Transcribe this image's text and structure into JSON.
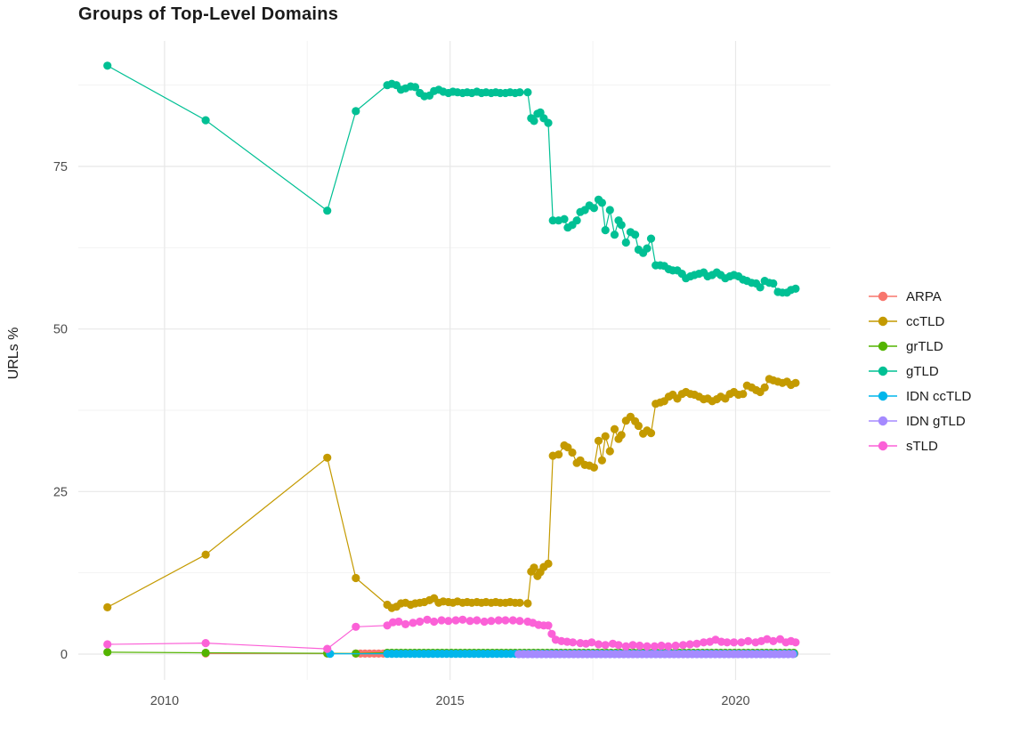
{
  "title": "Groups of Top-Level Domains",
  "style": {
    "background": "#ffffff",
    "grid_major_color": "#e8e8e8",
    "grid_minor_color": "#f3f3f3",
    "tick_label_color": "#4d4d4d",
    "text_color": "#1a1a1a"
  },
  "chart_data": {
    "type": "line",
    "title": "Groups of Top-Level Domains",
    "xlabel": "",
    "ylabel": "URLs %",
    "xlim": [
      2008.49,
      2021.66
    ],
    "ylim": [
      -3.97,
      94.3
    ],
    "x_ticks": [
      2010,
      2015,
      2020
    ],
    "x_minor_ticks": [
      2012.5,
      2017.5
    ],
    "y_ticks": [
      0,
      25,
      50,
      75
    ],
    "y_minor_ticks": [
      12.5,
      37.5,
      62.5,
      87.5
    ],
    "grid": true,
    "legend_position": "right",
    "point_radius": 4.6,
    "series": [
      {
        "name": "ARPA",
        "color": "#F8766D",
        "points": [
          [
            2010.72,
            0.1
          ],
          [
            2012.85,
            0.1
          ]
        ],
        "flat": {
          "from": 2013.35,
          "to": 2021.05,
          "step": 0.08,
          "value": 0.08
        }
      },
      {
        "name": "ccTLD",
        "color": "#C49A00",
        "points": [
          [
            2009.0,
            7.2
          ],
          [
            2010.72,
            15.3
          ],
          [
            2012.85,
            30.2
          ],
          [
            2013.35,
            11.7
          ],
          [
            2013.9,
            7.6
          ],
          [
            2013.98,
            7.1
          ],
          [
            2014.06,
            7.3
          ],
          [
            2014.14,
            7.8
          ],
          [
            2014.22,
            7.9
          ],
          [
            2014.31,
            7.6
          ],
          [
            2014.39,
            7.8
          ],
          [
            2014.47,
            7.9
          ],
          [
            2014.55,
            8.0
          ],
          [
            2014.64,
            8.3
          ],
          [
            2014.72,
            8.6
          ],
          [
            2014.8,
            7.9
          ],
          [
            2014.88,
            8.1
          ],
          [
            2014.97,
            8.0
          ],
          [
            2015.05,
            7.9
          ],
          [
            2015.13,
            8.1
          ],
          [
            2015.22,
            7.9
          ],
          [
            2015.3,
            8.0
          ],
          [
            2015.38,
            7.9
          ],
          [
            2015.47,
            8.0
          ],
          [
            2015.55,
            7.9
          ],
          [
            2015.63,
            8.0
          ],
          [
            2015.72,
            7.9
          ],
          [
            2015.8,
            8.0
          ],
          [
            2015.88,
            7.9
          ],
          [
            2015.97,
            7.9
          ],
          [
            2016.05,
            8.0
          ],
          [
            2016.14,
            7.9
          ],
          [
            2016.22,
            7.9
          ],
          [
            2016.36,
            7.8
          ],
          [
            2016.42,
            12.7
          ],
          [
            2016.47,
            13.3
          ],
          [
            2016.53,
            12.0
          ],
          [
            2016.58,
            12.6
          ],
          [
            2016.64,
            13.4
          ],
          [
            2016.72,
            13.9
          ],
          [
            2016.8,
            30.5
          ],
          [
            2016.9,
            30.7
          ],
          [
            2017.0,
            32.1
          ],
          [
            2017.06,
            31.8
          ],
          [
            2017.14,
            31.0
          ],
          [
            2017.22,
            29.4
          ],
          [
            2017.28,
            29.8
          ],
          [
            2017.36,
            29.1
          ],
          [
            2017.44,
            29.0
          ],
          [
            2017.52,
            28.7
          ],
          [
            2017.6,
            32.8
          ],
          [
            2017.66,
            29.8
          ],
          [
            2017.72,
            33.5
          ],
          [
            2017.8,
            31.2
          ],
          [
            2017.88,
            34.6
          ],
          [
            2017.95,
            33.1
          ],
          [
            2018.0,
            33.7
          ],
          [
            2018.08,
            35.9
          ],
          [
            2018.16,
            36.5
          ],
          [
            2018.24,
            35.8
          ],
          [
            2018.3,
            35.1
          ],
          [
            2018.38,
            33.9
          ],
          [
            2018.45,
            34.4
          ],
          [
            2018.52,
            34.0
          ],
          [
            2018.6,
            38.5
          ],
          [
            2018.68,
            38.7
          ],
          [
            2018.75,
            38.9
          ],
          [
            2018.83,
            39.6
          ],
          [
            2018.9,
            39.9
          ],
          [
            2018.98,
            39.3
          ],
          [
            2019.06,
            40.0
          ],
          [
            2019.13,
            40.3
          ],
          [
            2019.21,
            40.0
          ],
          [
            2019.28,
            39.9
          ],
          [
            2019.36,
            39.6
          ],
          [
            2019.44,
            39.2
          ],
          [
            2019.51,
            39.3
          ],
          [
            2019.59,
            38.9
          ],
          [
            2019.67,
            39.2
          ],
          [
            2019.74,
            39.6
          ],
          [
            2019.82,
            39.3
          ],
          [
            2019.9,
            40.0
          ],
          [
            2019.97,
            40.3
          ],
          [
            2020.05,
            39.9
          ],
          [
            2020.13,
            40.0
          ],
          [
            2020.2,
            41.3
          ],
          [
            2020.28,
            41.0
          ],
          [
            2020.36,
            40.6
          ],
          [
            2020.43,
            40.3
          ],
          [
            2020.51,
            41.0
          ],
          [
            2020.59,
            42.3
          ],
          [
            2020.66,
            42.1
          ],
          [
            2020.74,
            41.9
          ],
          [
            2020.82,
            41.7
          ],
          [
            2020.9,
            41.9
          ],
          [
            2020.97,
            41.4
          ],
          [
            2021.05,
            41.7
          ]
        ]
      },
      {
        "name": "grTLD",
        "color": "#53B400",
        "points": [
          [
            2009.0,
            0.3
          ],
          [
            2010.72,
            0.2
          ],
          [
            2012.85,
            0.12
          ],
          [
            2013.35,
            0.1
          ]
        ],
        "flat": {
          "from": 2013.9,
          "to": 2021.05,
          "step": 0.08,
          "value": 0.2
        }
      },
      {
        "name": "gTLD",
        "color": "#00C094",
        "points": [
          [
            2009.0,
            90.5
          ],
          [
            2010.72,
            82.1
          ],
          [
            2012.85,
            68.2
          ],
          [
            2013.35,
            83.5
          ],
          [
            2013.9,
            87.5
          ],
          [
            2013.98,
            87.7
          ],
          [
            2014.06,
            87.5
          ],
          [
            2014.14,
            86.8
          ],
          [
            2014.22,
            87.0
          ],
          [
            2014.31,
            87.3
          ],
          [
            2014.39,
            87.2
          ],
          [
            2014.47,
            86.3
          ],
          [
            2014.55,
            85.8
          ],
          [
            2014.64,
            85.9
          ],
          [
            2014.72,
            86.6
          ],
          [
            2014.8,
            86.8
          ],
          [
            2014.88,
            86.5
          ],
          [
            2014.97,
            86.3
          ],
          [
            2015.05,
            86.5
          ],
          [
            2015.13,
            86.4
          ],
          [
            2015.22,
            86.3
          ],
          [
            2015.3,
            86.4
          ],
          [
            2015.38,
            86.3
          ],
          [
            2015.47,
            86.5
          ],
          [
            2015.55,
            86.3
          ],
          [
            2015.63,
            86.4
          ],
          [
            2015.72,
            86.3
          ],
          [
            2015.8,
            86.4
          ],
          [
            2015.88,
            86.3
          ],
          [
            2015.97,
            86.3
          ],
          [
            2016.05,
            86.4
          ],
          [
            2016.14,
            86.3
          ],
          [
            2016.22,
            86.4
          ],
          [
            2016.36,
            86.4
          ],
          [
            2016.42,
            82.4
          ],
          [
            2016.47,
            82.0
          ],
          [
            2016.53,
            83.1
          ],
          [
            2016.58,
            83.3
          ],
          [
            2016.64,
            82.4
          ],
          [
            2016.72,
            81.7
          ],
          [
            2016.8,
            66.7
          ],
          [
            2016.9,
            66.7
          ],
          [
            2017.0,
            66.9
          ],
          [
            2017.06,
            65.6
          ],
          [
            2017.14,
            66.0
          ],
          [
            2017.22,
            66.7
          ],
          [
            2017.28,
            68.0
          ],
          [
            2017.36,
            68.3
          ],
          [
            2017.44,
            69.0
          ],
          [
            2017.52,
            68.6
          ],
          [
            2017.6,
            69.9
          ],
          [
            2017.66,
            69.4
          ],
          [
            2017.72,
            65.2
          ],
          [
            2017.8,
            68.3
          ],
          [
            2017.88,
            64.5
          ],
          [
            2017.95,
            66.7
          ],
          [
            2018.0,
            66.0
          ],
          [
            2018.08,
            63.3
          ],
          [
            2018.16,
            64.9
          ],
          [
            2018.24,
            64.5
          ],
          [
            2018.3,
            62.2
          ],
          [
            2018.38,
            61.7
          ],
          [
            2018.45,
            62.4
          ],
          [
            2018.52,
            63.9
          ],
          [
            2018.6,
            59.8
          ],
          [
            2018.68,
            59.8
          ],
          [
            2018.75,
            59.7
          ],
          [
            2018.83,
            59.2
          ],
          [
            2018.9,
            59.0
          ],
          [
            2018.98,
            59.0
          ],
          [
            2019.06,
            58.5
          ],
          [
            2019.13,
            57.8
          ],
          [
            2019.21,
            58.1
          ],
          [
            2019.28,
            58.3
          ],
          [
            2019.36,
            58.5
          ],
          [
            2019.44,
            58.7
          ],
          [
            2019.51,
            58.1
          ],
          [
            2019.59,
            58.3
          ],
          [
            2019.67,
            58.7
          ],
          [
            2019.74,
            58.3
          ],
          [
            2019.82,
            57.8
          ],
          [
            2019.9,
            58.1
          ],
          [
            2019.97,
            58.3
          ],
          [
            2020.05,
            58.1
          ],
          [
            2020.13,
            57.6
          ],
          [
            2020.2,
            57.4
          ],
          [
            2020.28,
            57.1
          ],
          [
            2020.36,
            57.0
          ],
          [
            2020.43,
            56.4
          ],
          [
            2020.51,
            57.4
          ],
          [
            2020.59,
            57.1
          ],
          [
            2020.66,
            57.0
          ],
          [
            2020.74,
            55.7
          ],
          [
            2020.82,
            55.6
          ],
          [
            2020.9,
            55.6
          ],
          [
            2020.97,
            56.0
          ],
          [
            2021.05,
            56.2
          ]
        ]
      },
      {
        "name": "IDN ccTLD",
        "color": "#00B6EB",
        "points": [
          [
            2012.9,
            0.05
          ]
        ],
        "flat": {
          "from": 2013.9,
          "to": 2021.05,
          "step": 0.08,
          "value": 0.05
        }
      },
      {
        "name": "IDN gTLD",
        "color": "#A58AFF",
        "points": [],
        "flat": {
          "from": 2016.2,
          "to": 2021.05,
          "step": 0.08,
          "value": 0.0
        }
      },
      {
        "name": "sTLD",
        "color": "#FB61D7",
        "points": [
          [
            2009.0,
            1.5
          ],
          [
            2010.72,
            1.7
          ],
          [
            2012.85,
            0.8
          ],
          [
            2013.35,
            4.2
          ],
          [
            2013.9,
            4.4
          ],
          [
            2014.0,
            4.9
          ],
          [
            2014.1,
            5.0
          ],
          [
            2014.22,
            4.6
          ],
          [
            2014.35,
            4.8
          ],
          [
            2014.47,
            5.0
          ],
          [
            2014.6,
            5.3
          ],
          [
            2014.72,
            5.0
          ],
          [
            2014.85,
            5.2
          ],
          [
            2014.97,
            5.1
          ],
          [
            2015.1,
            5.2
          ],
          [
            2015.22,
            5.3
          ],
          [
            2015.35,
            5.1
          ],
          [
            2015.47,
            5.2
          ],
          [
            2015.6,
            5.0
          ],
          [
            2015.72,
            5.1
          ],
          [
            2015.85,
            5.2
          ],
          [
            2015.97,
            5.2
          ],
          [
            2016.1,
            5.2
          ],
          [
            2016.22,
            5.1
          ],
          [
            2016.36,
            5.0
          ],
          [
            2016.45,
            4.8
          ],
          [
            2016.55,
            4.5
          ],
          [
            2016.64,
            4.4
          ],
          [
            2016.72,
            4.4
          ],
          [
            2016.78,
            3.1
          ],
          [
            2016.85,
            2.2
          ],
          [
            2016.95,
            2.0
          ],
          [
            2017.05,
            1.9
          ],
          [
            2017.15,
            1.8
          ],
          [
            2017.28,
            1.7
          ],
          [
            2017.38,
            1.6
          ],
          [
            2017.48,
            1.8
          ],
          [
            2017.6,
            1.5
          ],
          [
            2017.72,
            1.4
          ],
          [
            2017.85,
            1.6
          ],
          [
            2017.95,
            1.4
          ],
          [
            2018.08,
            1.2
          ],
          [
            2018.2,
            1.4
          ],
          [
            2018.32,
            1.3
          ],
          [
            2018.45,
            1.2
          ],
          [
            2018.58,
            1.2
          ],
          [
            2018.7,
            1.3
          ],
          [
            2018.82,
            1.2
          ],
          [
            2018.95,
            1.3
          ],
          [
            2019.08,
            1.4
          ],
          [
            2019.2,
            1.5
          ],
          [
            2019.32,
            1.6
          ],
          [
            2019.44,
            1.8
          ],
          [
            2019.55,
            1.9
          ],
          [
            2019.65,
            2.2
          ],
          [
            2019.75,
            1.9
          ],
          [
            2019.85,
            1.8
          ],
          [
            2019.97,
            1.8
          ],
          [
            2020.1,
            1.8
          ],
          [
            2020.22,
            2.0
          ],
          [
            2020.35,
            1.8
          ],
          [
            2020.45,
            2.0
          ],
          [
            2020.55,
            2.3
          ],
          [
            2020.66,
            2.0
          ],
          [
            2020.78,
            2.3
          ],
          [
            2020.88,
            1.8
          ],
          [
            2020.97,
            2.0
          ],
          [
            2021.05,
            1.8
          ]
        ]
      }
    ]
  }
}
